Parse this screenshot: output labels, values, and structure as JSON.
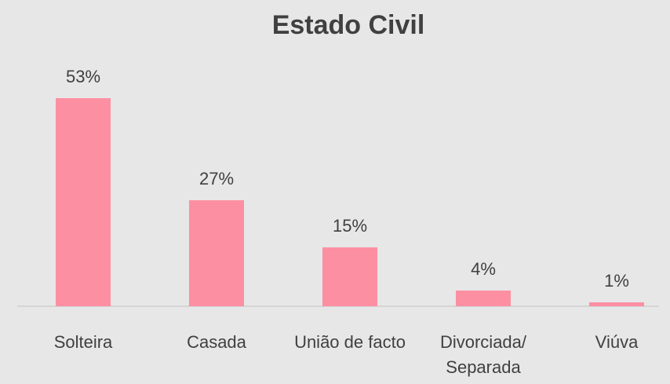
{
  "chart_data": {
    "type": "bar",
    "title": "Estado Civil",
    "categories": [
      "Solteira",
      "Casada",
      "União de facto",
      "Divorciada/ Separada",
      "Viúva"
    ],
    "values": [
      53,
      27,
      15,
      4,
      1
    ],
    "value_labels": [
      "53%",
      "27%",
      "15%",
      "4%",
      "1%"
    ],
    "color": "#fd8fa2"
  }
}
